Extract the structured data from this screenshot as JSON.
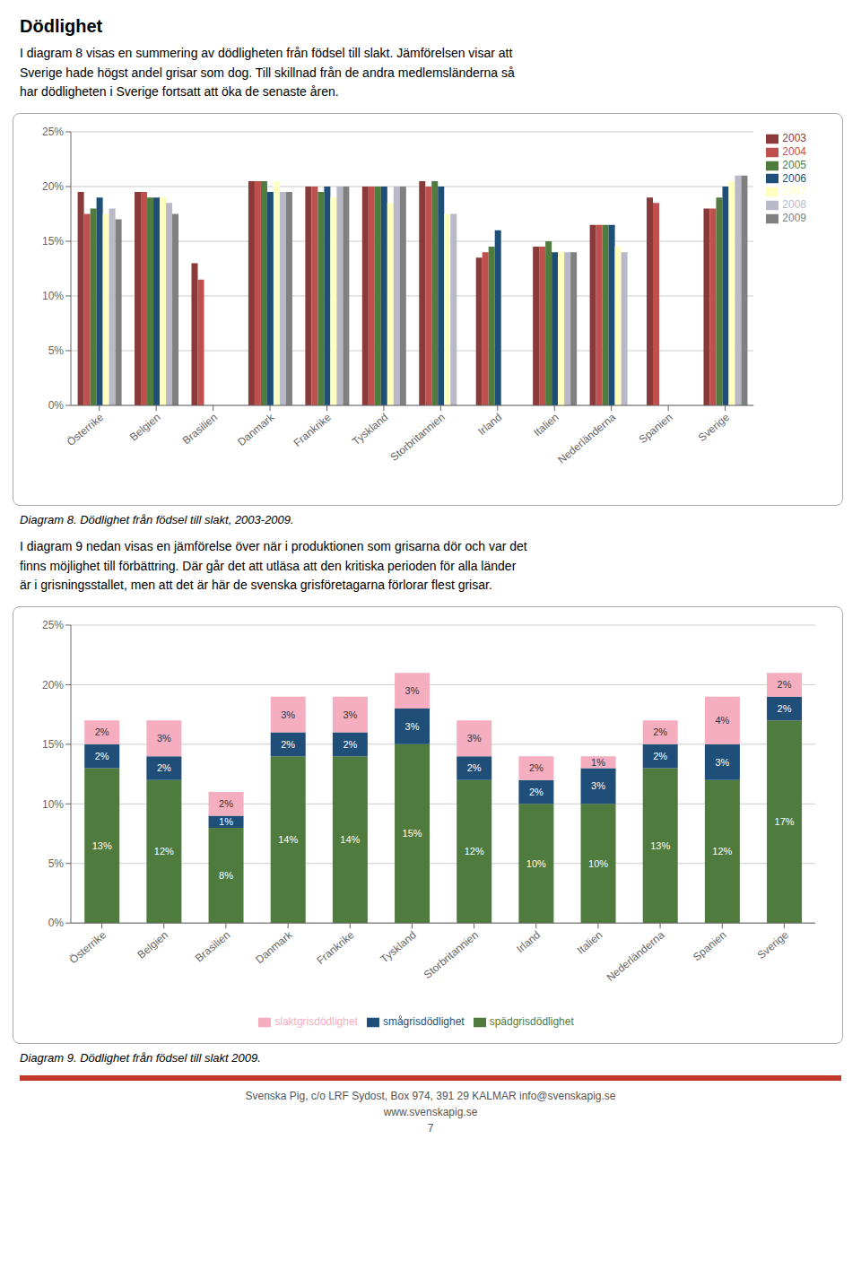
{
  "chart_data": [
    {
      "type": "bar",
      "title": "Dödlighet",
      "subtitle": "I diagram 8 visas en summering av dödligheten från födsel till slakt. Jämförelsen visar att\nSverige hade högst andel grisar som dog. Till skillnad från de andra medlemsländerna så\nhar dödligheten i Sverige fortsatt att öka de senaste åren.",
      "annotations": [
        "Diagram 8. Dödlighet från födsel till slakt, 2003-2009."
      ],
      "categories": [
        "Österrike",
        "Belgien",
        "Brasilien",
        "Danmark",
        "Frankrike",
        "Tyskland",
        "Storbritannien",
        "Irland",
        "Italien",
        "Nederländerna",
        "Spanien",
        "Sverige"
      ],
      "series": [
        {
          "name": "2003",
          "color": "#8B3A3A",
          "values": [
            19.5,
            19.5,
            13.0,
            20.5,
            20.0,
            20.0,
            20.5,
            13.5,
            14.5,
            16.5,
            19.0,
            18.0
          ]
        },
        {
          "name": "2004",
          "color": "#C0504D",
          "values": [
            17.5,
            19.5,
            11.5,
            20.5,
            20.0,
            20.0,
            20.0,
            14.0,
            14.5,
            16.5,
            18.5,
            18.0
          ]
        },
        {
          "name": "2005",
          "color": "#4F7B3E",
          "values": [
            18.0,
            19.0,
            0,
            20.5,
            19.5,
            20.0,
            20.5,
            14.5,
            15.0,
            16.5,
            0,
            19.0
          ]
        },
        {
          "name": "2006",
          "color": "#1F4E79",
          "values": [
            19.0,
            19.0,
            0,
            19.5,
            20.0,
            20.0,
            20.0,
            16.0,
            14.0,
            16.5,
            0,
            20.0
          ]
        },
        {
          "name": "2007",
          "color": "#FFFFC0",
          "values": [
            17.5,
            19.0,
            0,
            20.5,
            19.0,
            18.5,
            17.5,
            0,
            14.0,
            14.5,
            0,
            20.5
          ]
        },
        {
          "name": "2008",
          "color": "#B8B8C8",
          "values": [
            18.0,
            18.5,
            0,
            19.5,
            20.0,
            20.0,
            17.5,
            0,
            14.0,
            14.0,
            0,
            21.0
          ]
        },
        {
          "name": "2009",
          "color": "#808080",
          "values": [
            17.0,
            17.5,
            0,
            19.5,
            20.0,
            20.0,
            0,
            0,
            14.0,
            0,
            0,
            21.0
          ]
        }
      ],
      "ylim": [
        0,
        25
      ],
      "yticks": [
        {
          "value": 0,
          "label": "0%"
        },
        {
          "value": 5,
          "label": "5%"
        },
        {
          "value": 10,
          "label": "10%"
        },
        {
          "value": 15,
          "label": "15%"
        },
        {
          "value": 20,
          "label": "20%"
        },
        {
          "value": 25,
          "label": "25%"
        }
      ],
      "grid": true,
      "legend": "upper right"
    },
    {
      "type": "bar",
      "subtitle": "I diagram 9 nedan visas en jämförelse över när i produktionen som grisarna dör och var det\nfinns möjlighet till förbättring. Där går det att utläsa att den kritiska perioden för alla länder\när i grisningsstallet, men att det är här de svenska grisföretagarna förlorar flest grisar.",
      "annotations": [
        "Diagram 9. Dödlighet från födsel till slakt 2009.",
        "Svenska Pig, c/o LRF Sydost, Box 974, 391 29 KALMAR   info@svenskapig.se",
        "www.svenskapig.se",
        "7"
      ],
      "categories": [
        "Österrike",
        "Belgien",
        "Brasilien",
        "Danmark",
        "Frankrike",
        "Tyskland",
        "Storbritannien",
        "Irland",
        "Italien",
        "Nederländerna",
        "Spanien",
        "Sverige"
      ],
      "series": [
        {
          "name": "spädgrisdödlighet",
          "color": "#4F7B3E",
          "values": [
            13,
            12,
            8,
            14,
            14,
            15,
            12,
            10,
            10,
            13,
            12,
            17
          ],
          "value_labels": [
            "13%",
            "12%",
            "8%",
            "14%",
            "14%",
            "15%",
            "12%",
            "10%",
            "10%",
            "13%",
            "12%",
            "17%"
          ]
        },
        {
          "name": "smågrisdödlighet",
          "color": "#1F4E79",
          "values": [
            2,
            2,
            1,
            2,
            2,
            3,
            2,
            2,
            3,
            2,
            3,
            2
          ],
          "value_labels": [
            "2%",
            "2%",
            "1%",
            "2%",
            "2%",
            "3%",
            "2%",
            "2%",
            "3%",
            "2%",
            "3%",
            "2%"
          ]
        },
        {
          "name": "slaktgrisdödlighet",
          "color": "#F4AEBF",
          "values": [
            2,
            3,
            2,
            3,
            3,
            3,
            3,
            2,
            1,
            2,
            4,
            2
          ],
          "value_labels": [
            "2%",
            "3%",
            "2%",
            "3%",
            "3%",
            "3%",
            "3%",
            "2%",
            "1%",
            "2%",
            "4%",
            "2%"
          ]
        }
      ],
      "ylim": [
        0,
        25
      ],
      "yticks": [
        {
          "value": 0,
          "label": "0%"
        },
        {
          "value": 5,
          "label": "5%"
        },
        {
          "value": 10,
          "label": "10%"
        },
        {
          "value": 15,
          "label": "15%"
        },
        {
          "value": 20,
          "label": "20%"
        },
        {
          "value": 25,
          "label": "25%"
        }
      ],
      "grid": true,
      "stacked": true,
      "data_labels": true,
      "legend": "lower center"
    }
  ]
}
